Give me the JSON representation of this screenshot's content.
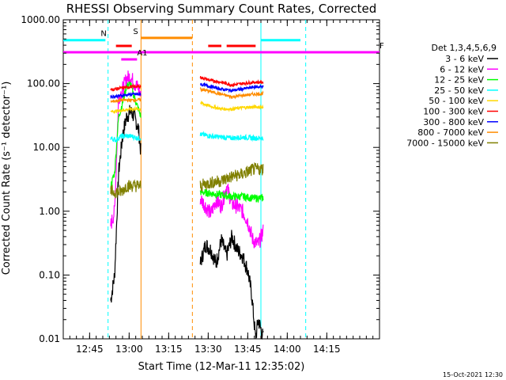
{
  "chart_data": {
    "type": "line",
    "title": "RHESSI Observing Summary Count Rates, Corrected",
    "xlabel": "Start Time (12-Mar-11 12:35:02)",
    "ylabel": "Corrected Count Rate (s⁻¹ detector⁻¹)",
    "y_scale": "log",
    "ylim": [
      0.01,
      1000
    ],
    "xlim_minutes": [
      0,
      120
    ],
    "x_ticks": [
      {
        "label": "12:45",
        "t": 10
      },
      {
        "label": "13:00",
        "t": 25
      },
      {
        "label": "13:15",
        "t": 40
      },
      {
        "label": "13:30",
        "t": 55
      },
      {
        "label": "13:45",
        "t": 70
      },
      {
        "label": "14:00",
        "t": 85
      },
      {
        "label": "14:15",
        "t": 100
      }
    ],
    "y_ticks": [
      {
        "label": "1000.00",
        "v": 1000
      },
      {
        "label": "100.00",
        "v": 100
      },
      {
        "label": "10.00",
        "v": 10
      },
      {
        "label": "1.00",
        "v": 1
      },
      {
        "label": "0.10",
        "v": 0.1
      },
      {
        "label": "0.01",
        "v": 0.01
      }
    ],
    "legend_title": "Det 1,3,4,5,6,9",
    "legend_placement": "right",
    "series": [
      {
        "name": "3 - 6 keV",
        "color": "#000000",
        "seg1": [
          [
            18,
            0.04
          ],
          [
            19.5,
            0.1
          ],
          [
            21,
            4
          ],
          [
            22.5,
            15
          ],
          [
            24,
            30
          ],
          [
            25.5,
            37
          ],
          [
            27,
            30
          ],
          [
            28.5,
            20
          ],
          [
            29.5,
            8
          ]
        ],
        "seg2": [
          [
            52,
            0.15
          ],
          [
            54,
            0.3
          ],
          [
            56,
            0.25
          ],
          [
            58,
            0.15
          ],
          [
            60,
            0.35
          ],
          [
            62,
            0.2
          ],
          [
            64,
            0.4
          ],
          [
            66,
            0.25
          ],
          [
            68,
            0.2
          ],
          [
            70,
            0.12
          ],
          [
            71.5,
            0.05
          ],
          [
            73,
            0.01
          ],
          [
            74,
            0.02
          ],
          [
            76,
            0.01
          ]
        ]
      },
      {
        "name": "6 - 12 keV",
        "color": "#ff00ff",
        "seg1": [
          [
            18,
            0.6
          ],
          [
            19.5,
            1
          ],
          [
            21,
            60
          ],
          [
            22.5,
            80
          ],
          [
            24,
            120
          ],
          [
            25.5,
            130
          ],
          [
            27,
            100
          ],
          [
            28.5,
            85
          ],
          [
            29.5,
            60
          ]
        ],
        "seg2": [
          [
            52,
            1.6
          ],
          [
            54,
            1.2
          ],
          [
            56,
            0.9
          ],
          [
            58,
            1.5
          ],
          [
            60,
            1.2
          ],
          [
            62,
            2.5
          ],
          [
            64,
            1.3
          ],
          [
            66,
            1.2
          ],
          [
            68,
            1.0
          ],
          [
            70,
            0.7
          ],
          [
            72,
            0.35
          ],
          [
            74,
            0.3
          ],
          [
            76,
            0.5
          ]
        ]
      },
      {
        "name": "12 - 25 keV",
        "color": "#00ff00",
        "seg1": [
          [
            18,
            2.5
          ],
          [
            19.5,
            4
          ],
          [
            21,
            30
          ],
          [
            22.5,
            50
          ],
          [
            24,
            90
          ],
          [
            25.5,
            100
          ],
          [
            27,
            60
          ],
          [
            28.5,
            40
          ],
          [
            29.5,
            30
          ]
        ],
        "seg2": [
          [
            52,
            2
          ],
          [
            56,
            1.9
          ],
          [
            60,
            1.8
          ],
          [
            64,
            1.7
          ],
          [
            68,
            1.7
          ],
          [
            72,
            1.6
          ],
          [
            76,
            1.6
          ]
        ]
      },
      {
        "name": "25 - 50 keV",
        "color": "#00ffff",
        "seg1": [
          [
            18,
            14
          ],
          [
            20,
            13
          ],
          [
            22,
            15
          ],
          [
            24,
            15
          ],
          [
            26,
            15
          ],
          [
            28,
            14
          ],
          [
            29.5,
            14
          ]
        ],
        "seg2": [
          [
            52,
            16
          ],
          [
            56,
            15
          ],
          [
            60,
            14.5
          ],
          [
            64,
            14
          ],
          [
            68,
            14.5
          ],
          [
            72,
            14
          ],
          [
            76,
            14
          ]
        ]
      },
      {
        "name": "50 - 100 keV",
        "color": "#ffd700",
        "seg1": [
          [
            18,
            36
          ],
          [
            22,
            38
          ],
          [
            26,
            40
          ],
          [
            29.5,
            40
          ]
        ],
        "seg2": [
          [
            52,
            50
          ],
          [
            56,
            44
          ],
          [
            60,
            40
          ],
          [
            64,
            40
          ],
          [
            68,
            42
          ],
          [
            72,
            43
          ],
          [
            76,
            43
          ]
        ]
      },
      {
        "name": "100 - 300 keV",
        "color": "#ff0000",
        "seg1": [
          [
            18,
            80
          ],
          [
            22,
            85
          ],
          [
            26,
            90
          ],
          [
            29.5,
            90
          ]
        ],
        "seg2": [
          [
            52,
            125
          ],
          [
            56,
            112
          ],
          [
            60,
            105
          ],
          [
            64,
            95
          ],
          [
            68,
            100
          ],
          [
            72,
            105
          ],
          [
            76,
            105
          ]
        ]
      },
      {
        "name": "300 - 800 keV",
        "color": "#0000ff",
        "seg1": [
          [
            18,
            62
          ],
          [
            22,
            65
          ],
          [
            26,
            68
          ],
          [
            29.5,
            68
          ]
        ],
        "seg2": [
          [
            52,
            98
          ],
          [
            56,
            90
          ],
          [
            60,
            82
          ],
          [
            64,
            78
          ],
          [
            68,
            82
          ],
          [
            72,
            88
          ],
          [
            76,
            90
          ]
        ]
      },
      {
        "name": "800 - 7000 keV",
        "color": "#ff8c00",
        "seg1": [
          [
            18,
            52
          ],
          [
            22,
            55
          ],
          [
            26,
            55
          ],
          [
            29.5,
            56
          ]
        ],
        "seg2": [
          [
            52,
            82
          ],
          [
            56,
            75
          ],
          [
            60,
            68
          ],
          [
            64,
            62
          ],
          [
            68,
            65
          ],
          [
            72,
            68
          ],
          [
            76,
            70
          ]
        ]
      },
      {
        "name": "7000 - 15000 keV",
        "color": "#808000",
        "seg1": [
          [
            18,
            2
          ],
          [
            20,
            2
          ],
          [
            22,
            2
          ],
          [
            24,
            2.5
          ],
          [
            26,
            2.5
          ],
          [
            28,
            2.5
          ],
          [
            29.5,
            2.5
          ]
        ],
        "seg2": [
          [
            52,
            2.5
          ],
          [
            56,
            2.8
          ],
          [
            60,
            3
          ],
          [
            64,
            3.5
          ],
          [
            68,
            3.8
          ],
          [
            72,
            4.5
          ],
          [
            76,
            4.6
          ]
        ]
      }
    ],
    "flag_bars": [
      {
        "label": "N",
        "color": "#00ffff",
        "y": 480,
        "ranges": [
          [
            0,
            16
          ],
          [
            75,
            90
          ]
        ]
      },
      {
        "label": "F",
        "color": "#ff00ff",
        "y": 310,
        "ranges": [
          [
            0,
            120
          ]
        ]
      },
      {
        "label": "S",
        "color": "#ff8c00",
        "y": 520,
        "ranges": [
          [
            29.5,
            49
          ]
        ]
      },
      {
        "label": "A1",
        "color": "#ff00ff",
        "y": 240,
        "ranges": [
          [
            22,
            28
          ]
        ]
      },
      {
        "label": "",
        "color": "#ff0000",
        "y": 390,
        "ranges": [
          [
            20,
            26
          ],
          [
            55,
            60
          ],
          [
            62,
            73
          ]
        ]
      }
    ],
    "vertical_markers": [
      {
        "t": 17,
        "color": "#00ffff",
        "style": "dashed"
      },
      {
        "t": 29.5,
        "color": "#ff8c00",
        "style": "solid"
      },
      {
        "t": 49,
        "color": "#ff8c00",
        "style": "dashed"
      },
      {
        "t": 75,
        "color": "#00ffff",
        "style": "solid"
      },
      {
        "t": 92,
        "color": "#00ffff",
        "style": "dashed"
      }
    ]
  },
  "footer": {
    "timestamp": "15-Oct-2021 12:30"
  },
  "colors": {
    "axis": "#000000",
    "background": "#ffffff"
  }
}
